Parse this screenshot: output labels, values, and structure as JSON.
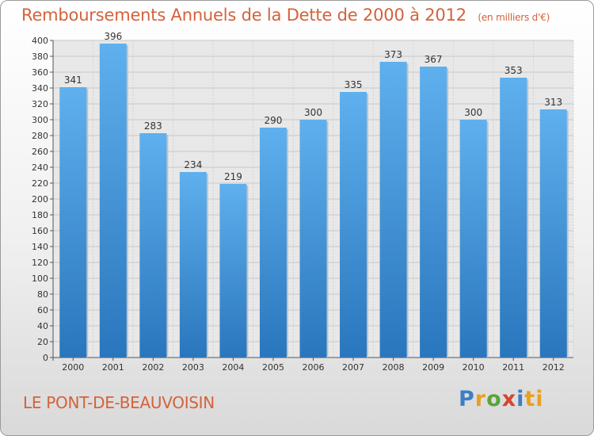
{
  "title": "Remboursements Annuels de la Dette de 2000 à 2012",
  "unit": "(en milliers d'€)",
  "commune": "LE PONT-DE-BEAUVOISIN",
  "logo": {
    "letters": [
      "P",
      "r",
      "o",
      "x",
      "i",
      "ti"
    ]
  },
  "colors": {
    "bar": "#3d8fd6",
    "title": "#d4623b"
  },
  "chart_data": {
    "type": "bar",
    "categories": [
      "2000",
      "2001",
      "2002",
      "2003",
      "2004",
      "2005",
      "2006",
      "2007",
      "2008",
      "2009",
      "2010",
      "2011",
      "2012"
    ],
    "values": [
      341,
      396,
      283,
      234,
      219,
      290,
      300,
      335,
      373,
      367,
      300,
      353,
      313
    ],
    "ylim": [
      0,
      400
    ],
    "ytick_step": 20,
    "grid": true,
    "data_labels": true
  }
}
